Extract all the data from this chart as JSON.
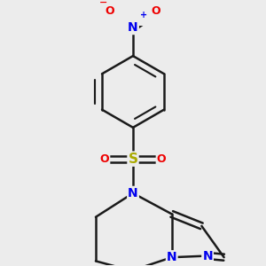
{
  "bg_color": "#ececec",
  "bond_color": "#1a1a1a",
  "bond_width": 1.8,
  "atom_colors": {
    "N": "#0000ee",
    "O": "#ee0000",
    "S": "#aaaa00",
    "C": "#1a1a1a"
  },
  "font_size_atom": 10,
  "fig_size": [
    3.0,
    3.0
  ],
  "dpi": 100,
  "xlim": [
    -1.3,
    1.3
  ],
  "ylim": [
    -1.4,
    1.8
  ]
}
